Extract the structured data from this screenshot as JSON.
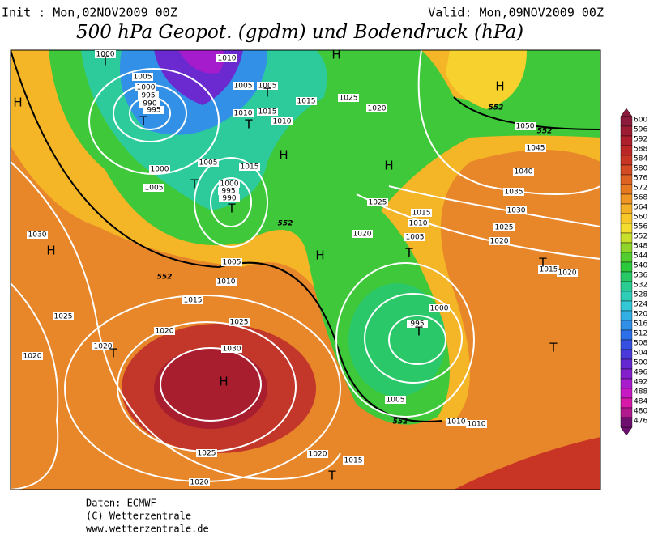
{
  "header": {
    "init": "Init : Mon,02NOV2009 00Z",
    "valid": "Valid: Mon,09NOV2009 00Z",
    "title": "500 hPa Geopot. (gpdm) und Bodendruck (hPa)"
  },
  "footer": {
    "source": "Daten: ECMWF",
    "copyright": "(C) Wetterzentrale",
    "url": "www.wetterzentrale.de"
  },
  "colorbar": [
    {
      "value": 600,
      "color": "#8c1a3c"
    },
    {
      "value": 596,
      "color": "#9e1c33"
    },
    {
      "value": 592,
      "color": "#ad1f2c"
    },
    {
      "value": 588,
      "color": "#bb2626"
    },
    {
      "value": 584,
      "color": "#c93524"
    },
    {
      "value": 580,
      "color": "#d44a22"
    },
    {
      "value": 576,
      "color": "#de6221"
    },
    {
      "value": 572,
      "color": "#e77a21"
    },
    {
      "value": 568,
      "color": "#ee9523"
    },
    {
      "value": 564,
      "color": "#f4b026"
    },
    {
      "value": 560,
      "color": "#f8c82b"
    },
    {
      "value": 556,
      "color": "#f5dd2f"
    },
    {
      "value": 552,
      "color": "#c8e02c"
    },
    {
      "value": 548,
      "color": "#8fd52b"
    },
    {
      "value": 544,
      "color": "#52cc2e"
    },
    {
      "value": 540,
      "color": "#2dc93c"
    },
    {
      "value": 536,
      "color": "#29c866"
    },
    {
      "value": 532,
      "color": "#2bcb92"
    },
    {
      "value": 528,
      "color": "#2fcdb8"
    },
    {
      "value": 524,
      "color": "#33c8d6"
    },
    {
      "value": 520,
      "color": "#33b0e3"
    },
    {
      "value": 516,
      "color": "#3090e8"
    },
    {
      "value": 512,
      "color": "#2d6fe8"
    },
    {
      "value": 508,
      "color": "#3550e0"
    },
    {
      "value": 504,
      "color": "#4a38d8"
    },
    {
      "value": 500,
      "color": "#6428d0"
    },
    {
      "value": 496,
      "color": "#8320cc"
    },
    {
      "value": 492,
      "color": "#a71ccc"
    },
    {
      "value": 488,
      "color": "#c81ac4"
    },
    {
      "value": 484,
      "color": "#d81aa8"
    },
    {
      "value": 480,
      "color": "#b01a8c"
    },
    {
      "value": 476,
      "color": "#6e1070"
    }
  ],
  "pressure_labels": [
    "1000",
    "1010",
    "1005",
    "1000",
    "995",
    "990",
    "995",
    "1005",
    "1005",
    "1015",
    "1025",
    "1020",
    "1010",
    "1015",
    "1010",
    "1000",
    "1005",
    "1015",
    "1005",
    "1000",
    "995",
    "990",
    "1025",
    "1015",
    "1010",
    "1020",
    "1005",
    "1030",
    "1025",
    "1020",
    "1035",
    "1040",
    "1045",
    "1050",
    "1015",
    "1020",
    "1030",
    "1005",
    "1010",
    "1015",
    "1025",
    "1020",
    "1025",
    "1030",
    "1020",
    "1020",
    "1000",
    "995",
    "1005",
    "1010",
    "1010",
    "1025",
    "1020",
    "1015",
    "1020"
  ],
  "highs": [
    "H",
    "H",
    "H",
    "H",
    "H",
    "H",
    "H",
    "H"
  ],
  "lows": [
    "T",
    "T",
    "T",
    "T",
    "T",
    "T",
    "T",
    "T",
    "T",
    "T",
    "T",
    "T"
  ],
  "geopotential_labels": [
    "552",
    "552",
    "552",
    "552",
    "552"
  ]
}
